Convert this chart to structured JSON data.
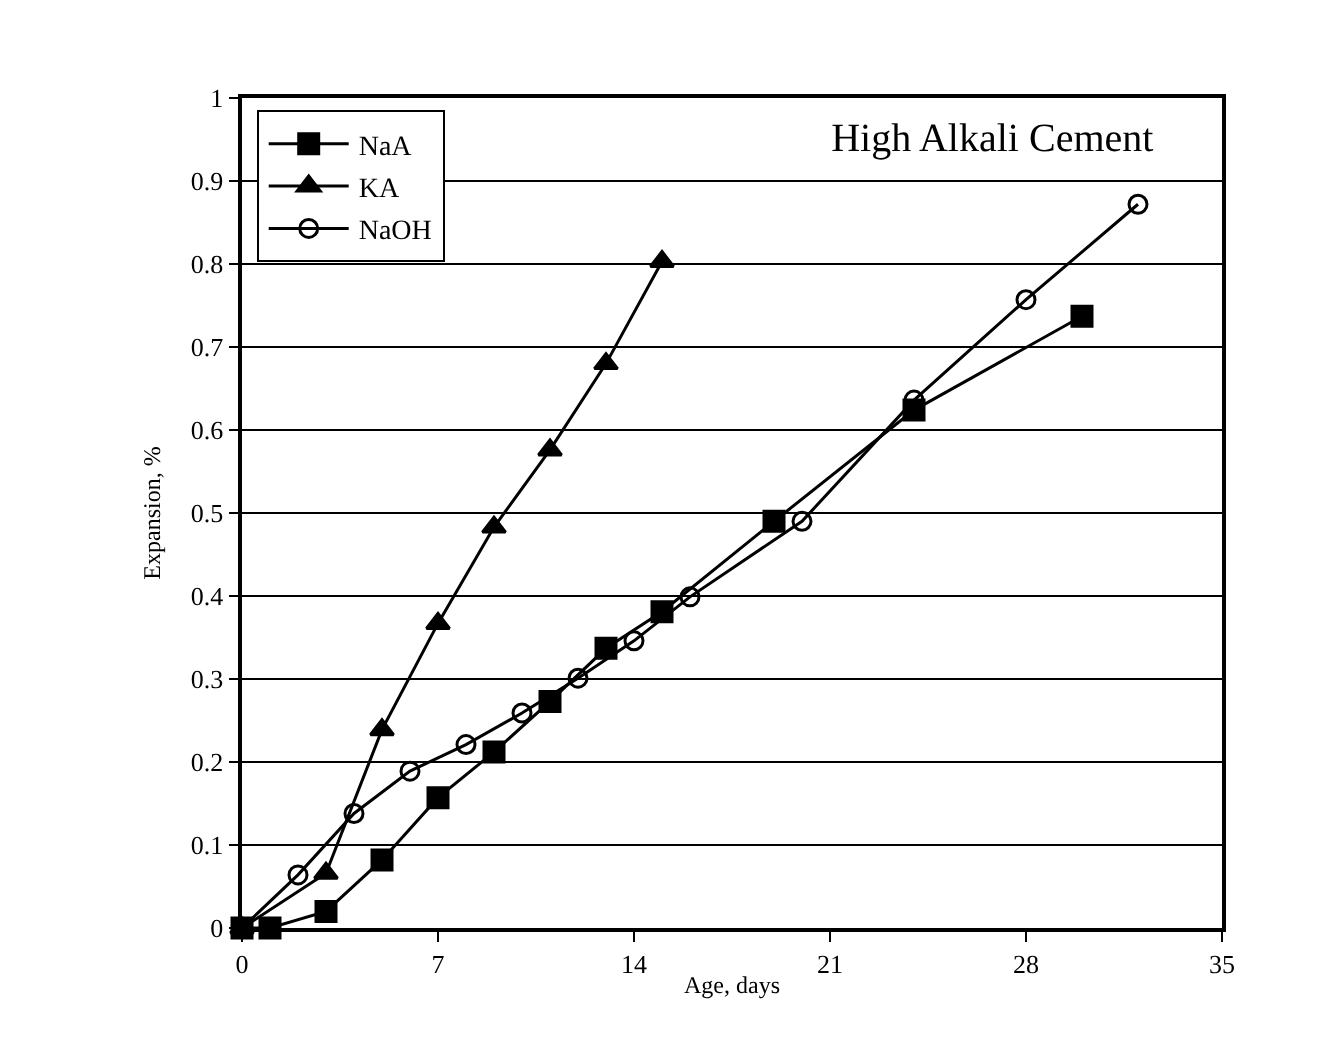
{
  "chart_data": {
    "type": "line",
    "title": "High Alkali Cement",
    "xlabel": "Age, days",
    "ylabel": "Expansion, %",
    "xlim": [
      0,
      35
    ],
    "xticks": [
      0,
      7,
      14,
      21,
      28,
      35
    ],
    "ylim": [
      0,
      1
    ],
    "yticks": [
      0,
      0.1,
      0.2,
      0.3,
      0.4,
      0.5,
      0.6,
      0.7,
      0.8,
      0.9,
      1
    ],
    "grid": "y",
    "legend": "top left",
    "series": [
      {
        "name": "NaA",
        "color": "#000000",
        "marker": "square",
        "x": [
          0,
          1,
          3,
          5,
          7,
          9,
          11,
          13,
          15,
          19,
          24,
          30
        ],
        "values": [
          0,
          0,
          0.02,
          0.082,
          0.157,
          0.212,
          0.273,
          0.337,
          0.381,
          0.49,
          0.624,
          0.737
        ]
      },
      {
        "name": "KA",
        "color": "#000000",
        "marker": "triangle",
        "x": [
          0,
          3,
          5,
          7,
          9,
          11,
          13,
          15
        ],
        "values": [
          0,
          0.066,
          0.239,
          0.367,
          0.483,
          0.576,
          0.68,
          0.803
        ]
      },
      {
        "name": "NaOH",
        "color": "#000000",
        "marker": "circle",
        "x": [
          0,
          2,
          4,
          6,
          8,
          10,
          12,
          14,
          16,
          20,
          24,
          28,
          32
        ],
        "values": [
          0,
          0.064,
          0.138,
          0.189,
          0.221,
          0.259,
          0.301,
          0.346,
          0.399,
          0.49,
          0.636,
          0.757,
          0.872
        ]
      }
    ]
  }
}
